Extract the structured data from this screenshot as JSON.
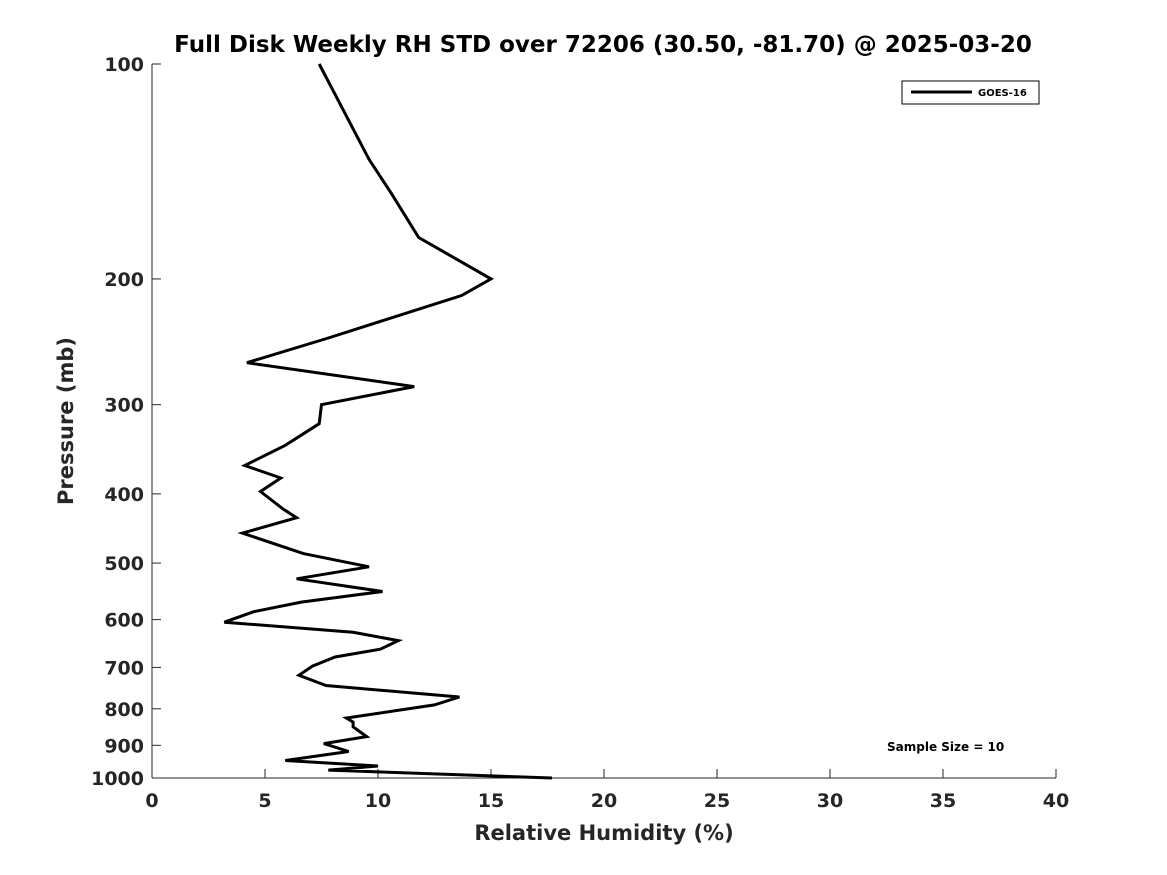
{
  "chart_data": {
    "type": "line",
    "title": "Full Disk Weekly RH STD over 72206 (30.50, -81.70) @ 2025-03-20",
    "xlabel": "Relative Humidity (%)",
    "ylabel": "Pressure (mb)",
    "xlim": [
      0,
      40
    ],
    "ylim": [
      100,
      1000
    ],
    "y_scale": "log",
    "y_reversed": true,
    "xticks": [
      0,
      5,
      10,
      15,
      20,
      25,
      30,
      35,
      40
    ],
    "yticks": [
      100,
      200,
      300,
      400,
      500,
      600,
      700,
      800,
      900,
      1000
    ],
    "grid": false,
    "legend_position": "top-right",
    "annotation": "Sample Size = 10",
    "series": [
      {
        "name": "GOES-16",
        "color": "#000000",
        "points": [
          [
            7.4,
            100
          ],
          [
            9.6,
            136
          ],
          [
            10.6,
            152
          ],
          [
            11.8,
            175
          ],
          [
            15.0,
            200
          ],
          [
            13.7,
            211
          ],
          [
            7.8,
            242
          ],
          [
            4.2,
            262
          ],
          [
            11.6,
            283
          ],
          [
            7.5,
            300
          ],
          [
            7.4,
            319
          ],
          [
            5.9,
            342
          ],
          [
            4.1,
            365
          ],
          [
            5.7,
            380
          ],
          [
            4.8,
            397
          ],
          [
            5.8,
            420
          ],
          [
            6.4,
            432
          ],
          [
            4.0,
            454
          ],
          [
            6.7,
            485
          ],
          [
            9.6,
            506
          ],
          [
            6.4,
            526
          ],
          [
            10.2,
            548
          ],
          [
            6.6,
            567
          ],
          [
            4.5,
            585
          ],
          [
            3.2,
            605
          ],
          [
            8.9,
            625
          ],
          [
            10.9,
            642
          ],
          [
            10.1,
            660
          ],
          [
            8.1,
            677
          ],
          [
            7.1,
            697
          ],
          [
            6.5,
            718
          ],
          [
            7.7,
            742
          ],
          [
            13.6,
            770
          ],
          [
            12.5,
            790
          ],
          [
            8.6,
            824
          ],
          [
            8.9,
            835
          ],
          [
            8.9,
            848
          ],
          [
            9.5,
            875
          ],
          [
            7.6,
            895
          ],
          [
            8.7,
            918
          ],
          [
            5.9,
            945
          ],
          [
            10.0,
            962
          ],
          [
            7.8,
            975
          ],
          [
            17.7,
            1000
          ]
        ]
      }
    ]
  }
}
